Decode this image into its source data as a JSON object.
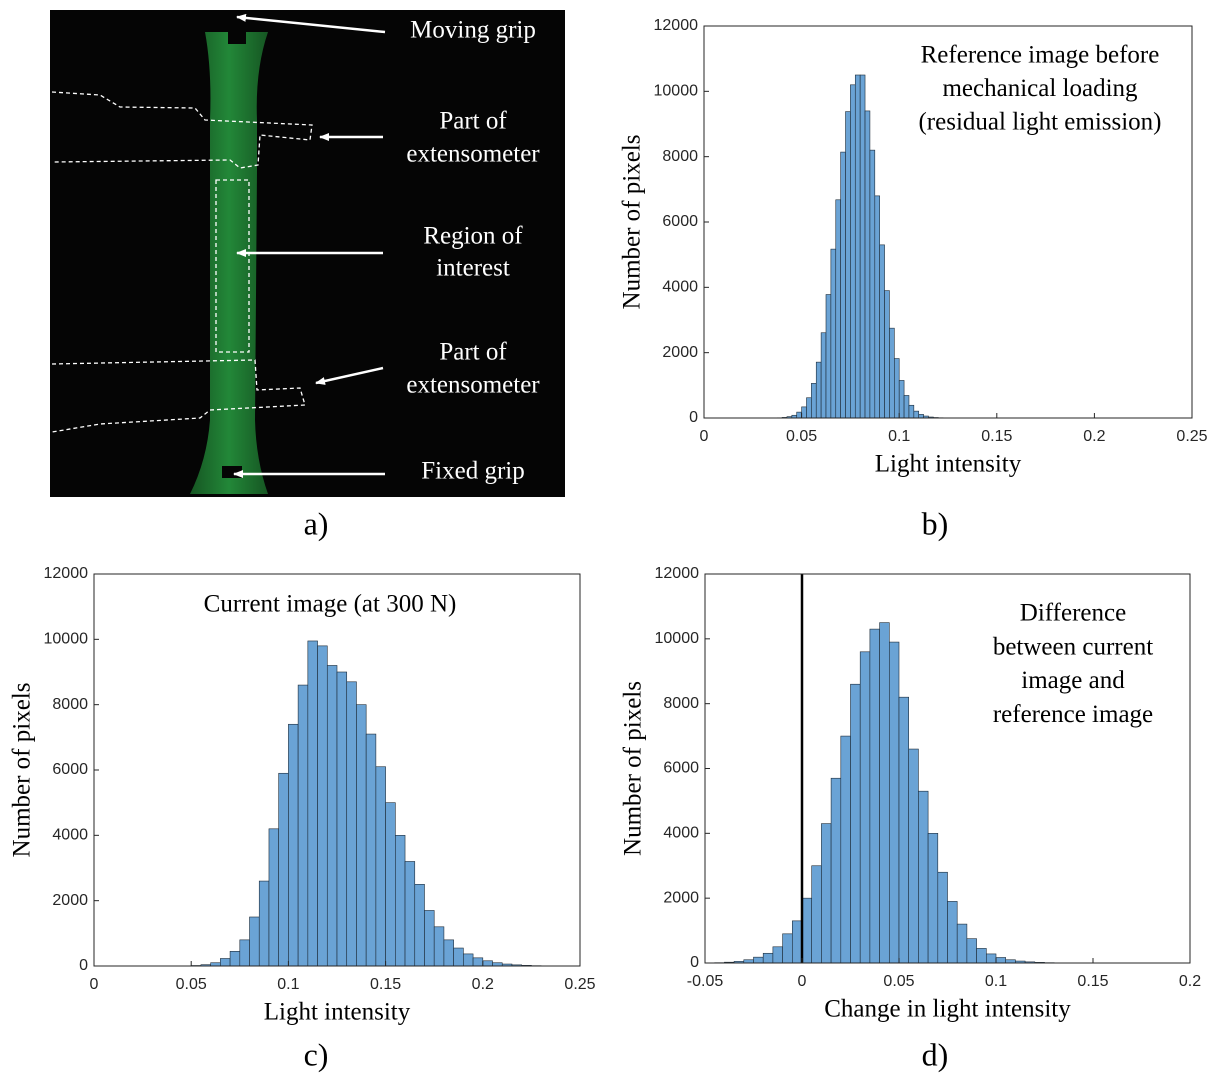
{
  "photo": {
    "caption": "a)",
    "labels": [
      [
        "Moving grip"
      ],
      [
        "Part of",
        "extensometer"
      ],
      [
        "Region of",
        "interest"
      ],
      [
        "Part of",
        "extensometer"
      ],
      [
        "Fixed grip"
      ]
    ]
  },
  "chart_data": [
    {
      "type": "histogram",
      "caption": "b)",
      "annotation": [
        "Reference image before",
        "mechanical loading",
        "(residual light emission)"
      ],
      "xlabel": "Light intensity",
      "ylabel": "Number of pixels",
      "xlim": [
        0,
        0.25
      ],
      "ylim": [
        0,
        12000
      ],
      "xticks": [
        0,
        0.05,
        0.1,
        0.15,
        0.2,
        0.25
      ],
      "yticks": [
        0,
        2000,
        4000,
        6000,
        8000,
        10000,
        12000
      ],
      "color": "#6aa3d5",
      "edgecolor": "#1d2b38",
      "bins": [
        0.0375,
        0.04,
        0.0425,
        0.045,
        0.0475,
        0.05,
        0.0525,
        0.055,
        0.0575,
        0.06,
        0.0625,
        0.065,
        0.0675,
        0.07,
        0.0725,
        0.075,
        0.0775,
        0.08,
        0.0825,
        0.085,
        0.0875,
        0.09,
        0.0925,
        0.095,
        0.0975,
        0.1,
        0.1025,
        0.105,
        0.1075,
        0.11,
        0.1125,
        0.115,
        0.1175,
        0.12,
        0.1225,
        0.125,
        0.1275,
        0.13
      ],
      "values": [
        7,
        18,
        42,
        84,
        180,
        340,
        620,
        1060,
        1710,
        2610,
        3780,
        5170,
        6680,
        8140,
        9380,
        10200,
        10500,
        10500,
        9400,
        8200,
        6800,
        5300,
        3900,
        2750,
        1820,
        1150,
        690,
        390,
        210,
        110,
        60,
        30,
        15,
        8,
        4,
        3,
        2
      ]
    },
    {
      "type": "histogram",
      "caption": "c)",
      "annotation": [
        "Current image (at 300 N)"
      ],
      "xlabel": "Light intensity",
      "ylabel": "Number of pixels",
      "xlim": [
        0,
        0.25
      ],
      "ylim": [
        0,
        12000
      ],
      "xticks": [
        0,
        0.05,
        0.1,
        0.15,
        0.2,
        0.25
      ],
      "yticks": [
        0,
        2000,
        4000,
        6000,
        8000,
        10000,
        12000
      ],
      "color": "#6aa3d5",
      "edgecolor": "#1d2b38",
      "bins": [
        0.05,
        0.055,
        0.06,
        0.065,
        0.07,
        0.075,
        0.08,
        0.085,
        0.09,
        0.095,
        0.1,
        0.105,
        0.11,
        0.115,
        0.12,
        0.125,
        0.13,
        0.135,
        0.14,
        0.145,
        0.15,
        0.155,
        0.16,
        0.165,
        0.17,
        0.175,
        0.18,
        0.185,
        0.19,
        0.195,
        0.2,
        0.205,
        0.21,
        0.215,
        0.22,
        0.225,
        0.23,
        0.235
      ],
      "values": [
        15,
        40,
        100,
        230,
        450,
        800,
        1500,
        2600,
        4200,
        5900,
        7400,
        8600,
        9950,
        9800,
        9200,
        9000,
        8700,
        8000,
        7100,
        6100,
        5000,
        4000,
        3200,
        2500,
        1700,
        1200,
        800,
        550,
        370,
        250,
        160,
        100,
        60,
        35,
        20,
        10,
        5
      ]
    },
    {
      "type": "histogram",
      "caption": "d)",
      "annotation": [
        "Difference",
        "between current",
        "image and",
        "reference image"
      ],
      "xlabel": "Change in light intensity",
      "ylabel": "Number of pixels",
      "xlim": [
        -0.05,
        0.2
      ],
      "ylim": [
        0,
        12000
      ],
      "xticks": [
        -0.05,
        0,
        0.05,
        0.1,
        0.15,
        0.2
      ],
      "yticks": [
        0,
        2000,
        4000,
        6000,
        8000,
        10000,
        12000
      ],
      "color": "#6aa3d5",
      "edgecolor": "#1d2b38",
      "vline": 0,
      "bins": [
        -0.045,
        -0.04,
        -0.035,
        -0.03,
        -0.025,
        -0.02,
        -0.015,
        -0.01,
        -0.005,
        0,
        0.005,
        0.01,
        0.015,
        0.02,
        0.025,
        0.03,
        0.035,
        0.04,
        0.045,
        0.05,
        0.055,
        0.06,
        0.065,
        0.07,
        0.075,
        0.08,
        0.085,
        0.09,
        0.095,
        0.1,
        0.105,
        0.11,
        0.115,
        0.12,
        0.125,
        0.13,
        0.135
      ],
      "values": [
        10,
        25,
        50,
        100,
        180,
        300,
        500,
        900,
        1300,
        2000,
        3000,
        4300,
        5700,
        7000,
        8600,
        9600,
        10300,
        10500,
        9900,
        8200,
        6600,
        5300,
        4000,
        2800,
        1900,
        1200,
        750,
        450,
        280,
        170,
        100,
        60,
        35,
        20,
        10,
        5
      ]
    }
  ]
}
